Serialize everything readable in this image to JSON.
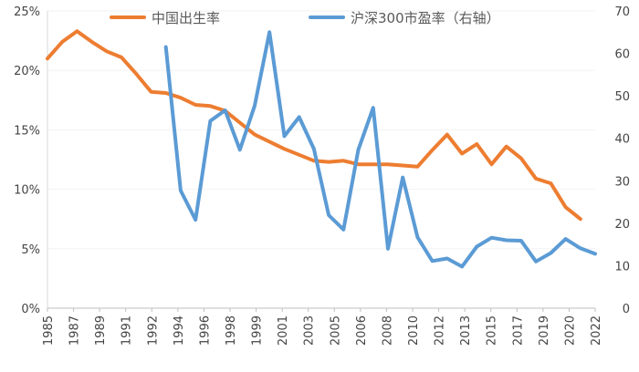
{
  "chart_data": {
    "type": "line",
    "legend": {
      "position": "top",
      "entries": [
        {
          "label": "中国出生率",
          "color": "#ED7D31"
        },
        {
          "label": "沪深300市盈率（右轴）",
          "color": "#5B9BD5"
        }
      ]
    },
    "x_ticks": [
      "1985",
      "1987",
      "1989",
      "1991",
      "1992",
      "1994",
      "1996",
      "1998",
      "1999",
      "2001",
      "2003",
      "2005",
      "2006",
      "2008",
      "2010",
      "2012",
      "2013",
      "2015",
      "2017",
      "2019",
      "2020",
      "2022"
    ],
    "y_left": {
      "min": 0,
      "max": 25,
      "ticks": [
        0,
        5,
        10,
        15,
        20,
        25
      ],
      "tick_labels": [
        "0%",
        "5%",
        "10%",
        "15%",
        "20%",
        "25%"
      ]
    },
    "y_right": {
      "min": 0,
      "max": 70,
      "ticks": [
        0,
        10,
        20,
        30,
        40,
        50,
        60,
        70
      ],
      "tick_labels": [
        "0",
        "10",
        "20",
        "30",
        "40",
        "50",
        "60",
        "70"
      ]
    },
    "series": [
      {
        "name": "中国出生率",
        "axis": "left",
        "color": "#ED7D31",
        "x": [
          1985,
          1986,
          1987,
          1988,
          1989,
          1990,
          1991,
          1992,
          1993,
          1994,
          1995,
          1996,
          1997,
          1998,
          1999,
          2000,
          2001,
          2002,
          2003,
          2004,
          2005,
          2006,
          2007,
          2008,
          2009,
          2010,
          2011,
          2012,
          2013,
          2014,
          2015,
          2016,
          2017,
          2018,
          2019,
          2020,
          2021
        ],
        "values": [
          21.0,
          22.4,
          23.3,
          22.4,
          21.6,
          21.1,
          19.7,
          18.2,
          18.1,
          17.7,
          17.1,
          17.0,
          16.6,
          15.6,
          14.6,
          14.0,
          13.4,
          12.9,
          12.4,
          12.3,
          12.4,
          12.1,
          12.1,
          12.1,
          12.0,
          11.9,
          13.3,
          14.6,
          13.0,
          13.8,
          12.1,
          13.6,
          12.6,
          10.9,
          10.5,
          8.5,
          7.5
        ]
      },
      {
        "name": "沪深300市盈率（右轴）",
        "axis": "right",
        "color": "#5B9BD5",
        "x": [
          1993,
          1994,
          1995,
          1996,
          1997,
          1998,
          1999,
          2000,
          2001,
          2002,
          2003,
          2004,
          2005,
          2006,
          2007,
          2008,
          2009,
          2010,
          2011,
          2012,
          2013,
          2014,
          2015,
          2016,
          2017,
          2018,
          2019,
          2020,
          2021,
          2022
        ],
        "values": [
          61.5,
          27.7,
          20.8,
          44.1,
          46.6,
          37.3,
          47.7,
          65.0,
          40.5,
          45.0,
          37.5,
          21.9,
          18.5,
          37.3,
          47.2,
          14.0,
          30.8,
          16.7,
          11.1,
          11.7,
          9.8,
          14.5,
          16.6,
          16.0,
          15.9,
          11.0,
          13.0,
          16.3,
          14.1,
          12.8
        ]
      }
    ]
  }
}
